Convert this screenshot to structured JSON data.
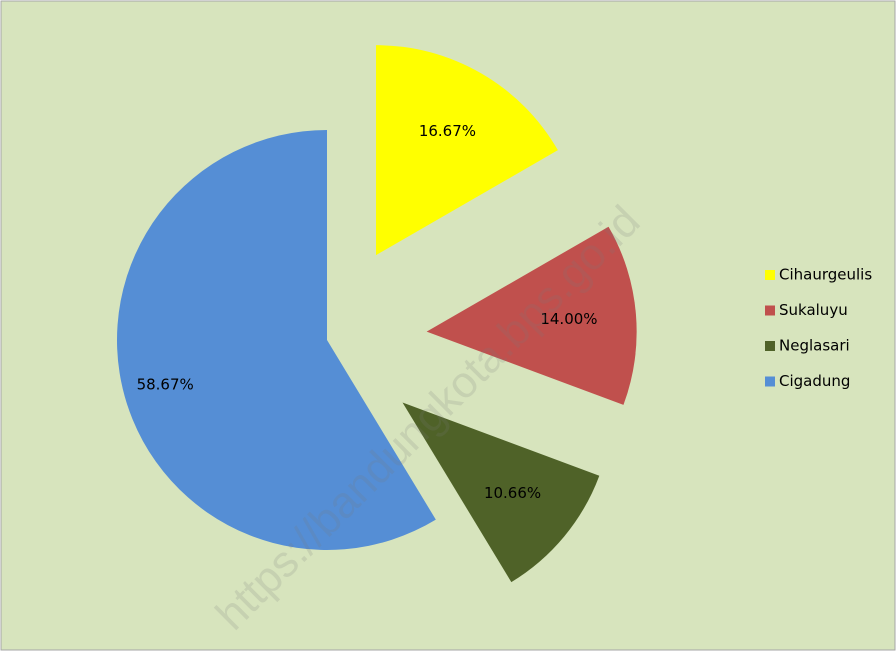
{
  "chart_data": {
    "type": "pie",
    "categories": [
      "Cihaurgeulis",
      "Sukaluyu",
      "Neglasari",
      "Cigadung"
    ],
    "values": [
      16.67,
      14.0,
      10.66,
      58.67
    ],
    "value_labels": [
      "16.67%",
      "14.00%",
      "10.66%",
      "58.67%"
    ],
    "colors": [
      "#ffff00",
      "#c0504d",
      "#4f6228",
      "#558ed5"
    ],
    "legend": "right",
    "watermark": "https://bandungkota.bps.go.id"
  }
}
